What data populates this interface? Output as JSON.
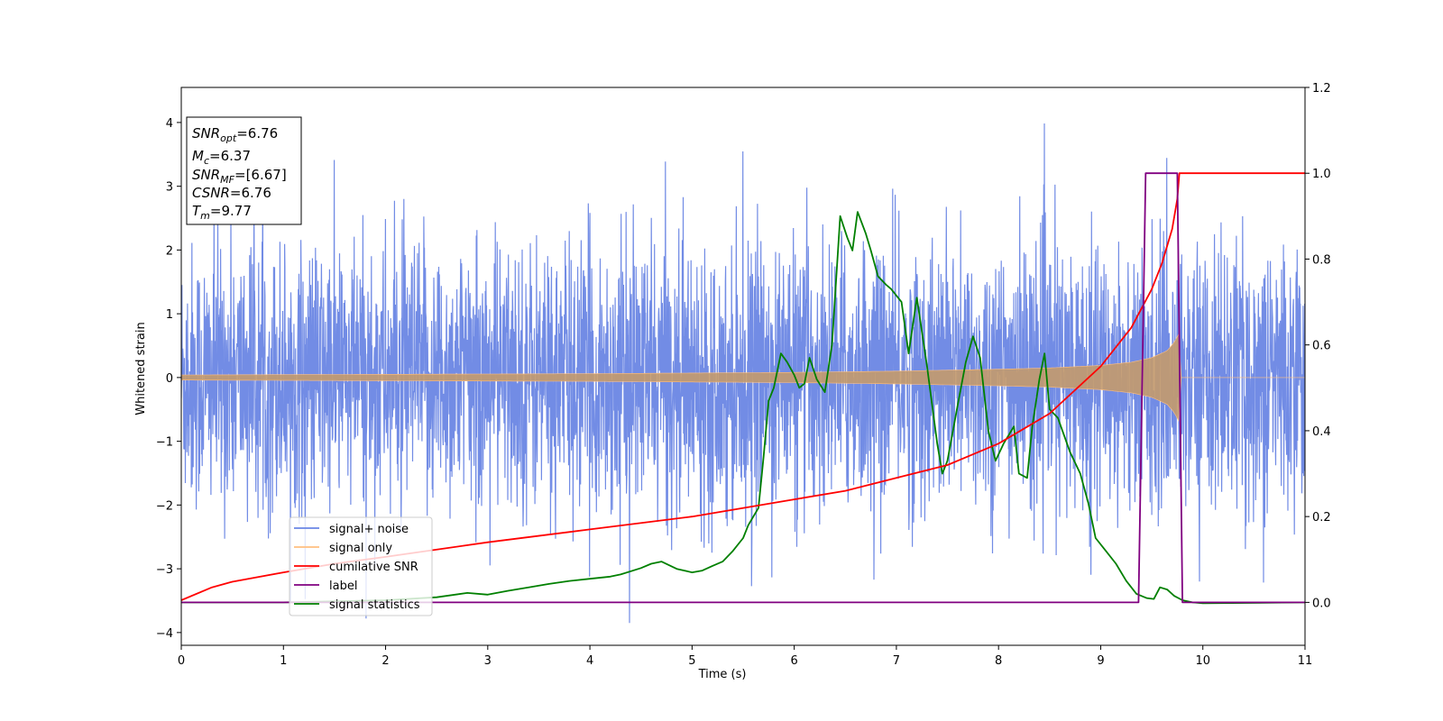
{
  "chart_data": {
    "type": "line",
    "title": "",
    "xlabel": "Time (s)",
    "ylabel": "Whitened strain",
    "xlim": [
      0,
      11
    ],
    "ylim": [
      -4.2,
      4.55
    ],
    "y2lim": [
      -0.1,
      1.2
    ],
    "grid": false,
    "legend_position": "bottom-left",
    "x_ticks": [
      0,
      1,
      2,
      3,
      4,
      5,
      6,
      7,
      8,
      9,
      10,
      11
    ],
    "x_tick_labels": [
      "0",
      "1",
      "2",
      "3",
      "4",
      "5",
      "6",
      "7",
      "8",
      "9",
      "10",
      "11"
    ],
    "y_ticks": [
      -4,
      -3,
      -2,
      -1,
      0,
      1,
      2,
      3,
      4
    ],
    "y_tick_labels": [
      "−4",
      "−3",
      "−2",
      "−1",
      "0",
      "1",
      "2",
      "3",
      "4"
    ],
    "y2_ticks": [
      0.0,
      0.2,
      0.4,
      0.6,
      0.8,
      1.0,
      1.2
    ],
    "y2_tick_labels": [
      "0.0",
      "0.2",
      "0.4",
      "0.6",
      "0.8",
      "1.0",
      "1.2"
    ],
    "series": [
      {
        "name": "signal+ noise",
        "color": "#6a86e4",
        "axis": "left",
        "rendering": "dense noise band, approximately ±2.5 with spikes reaching about ±4.1",
        "amplitude": 2.5,
        "peak": 4.15
      },
      {
        "name": "signal only",
        "color": "#ffbf80",
        "axis": "left",
        "rendering": "chirp envelope growing toward merger then zero",
        "envelope": {
          "x": [
            0,
            2,
            4,
            6,
            7,
            8,
            8.5,
            9,
            9.3,
            9.5,
            9.65,
            9.72,
            9.77,
            9.78,
            11
          ],
          "y": [
            0.04,
            0.05,
            0.06,
            0.08,
            0.1,
            0.13,
            0.15,
            0.19,
            0.24,
            0.31,
            0.42,
            0.55,
            0.7,
            0.0,
            0.0
          ]
        }
      },
      {
        "name": "cumilative SNR",
        "color": "#ff0000",
        "axis": "right",
        "x": [
          0,
          0.3,
          0.5,
          1.0,
          1.5,
          2,
          3,
          4,
          5,
          6,
          6.5,
          7,
          7.5,
          8,
          8.5,
          9,
          9.3,
          9.5,
          9.6,
          9.7,
          9.75,
          9.77,
          11
        ],
        "y": [
          0.005,
          0.035,
          0.048,
          0.07,
          0.09,
          0.106,
          0.14,
          0.17,
          0.2,
          0.24,
          0.26,
          0.29,
          0.32,
          0.37,
          0.44,
          0.55,
          0.64,
          0.73,
          0.79,
          0.87,
          0.94,
          1.0,
          1.0
        ]
      },
      {
        "name": "label",
        "color": "#800080",
        "axis": "right",
        "x": [
          0,
          9.37,
          9.44,
          9.75,
          9.8,
          11
        ],
        "y": [
          0,
          0,
          1,
          1,
          0,
          0
        ]
      },
      {
        "name": "signal statistics",
        "color": "#008000",
        "axis": "right",
        "x": [
          0,
          1,
          2,
          2.5,
          2.8,
          3,
          3.2,
          3.4,
          3.6,
          3.8,
          4.0,
          4.2,
          4.3,
          4.5,
          4.6,
          4.7,
          4.85,
          5.0,
          5.1,
          5.2,
          5.3,
          5.4,
          5.5,
          5.55,
          5.6,
          5.65,
          5.7,
          5.75,
          5.8,
          5.87,
          5.93,
          6.0,
          6.05,
          6.1,
          6.15,
          6.22,
          6.3,
          6.37,
          6.45,
          6.52,
          6.57,
          6.62,
          6.7,
          6.75,
          6.82,
          6.9,
          6.95,
          7.05,
          7.12,
          7.2,
          7.3,
          7.4,
          7.45,
          7.5,
          7.6,
          7.68,
          7.75,
          7.82,
          7.9,
          7.97,
          8.05,
          8.15,
          8.2,
          8.28,
          8.33,
          8.4,
          8.45,
          8.5,
          8.58,
          8.7,
          8.8,
          8.88,
          8.95,
          9.05,
          9.15,
          9.25,
          9.35,
          9.45,
          9.52,
          9.58,
          9.65,
          9.72,
          9.8,
          9.9,
          10.0,
          11.0
        ],
        "y": [
          0.0,
          0.0,
          0.005,
          0.012,
          0.022,
          0.018,
          0.027,
          0.035,
          0.043,
          0.05,
          0.055,
          0.06,
          0.065,
          0.08,
          0.09,
          0.095,
          0.078,
          0.07,
          0.074,
          0.085,
          0.095,
          0.12,
          0.15,
          0.18,
          0.2,
          0.22,
          0.34,
          0.47,
          0.5,
          0.58,
          0.56,
          0.53,
          0.5,
          0.51,
          0.57,
          0.52,
          0.49,
          0.6,
          0.9,
          0.85,
          0.82,
          0.91,
          0.86,
          0.82,
          0.76,
          0.74,
          0.73,
          0.7,
          0.58,
          0.71,
          0.55,
          0.37,
          0.3,
          0.33,
          0.46,
          0.56,
          0.62,
          0.57,
          0.4,
          0.33,
          0.37,
          0.41,
          0.3,
          0.29,
          0.41,
          0.52,
          0.58,
          0.45,
          0.43,
          0.35,
          0.3,
          0.23,
          0.15,
          0.12,
          0.09,
          0.05,
          0.02,
          0.01,
          0.008,
          0.035,
          0.03,
          0.015,
          0.005,
          0.0,
          -0.002,
          0.0
        ]
      }
    ],
    "annotation": {
      "lines": [
        {
          "base": "SNR",
          "sub": "opt",
          "value": "=6.76"
        },
        {
          "base": "M",
          "sub": "c",
          "value": "=6.37"
        },
        {
          "base": "SNR",
          "sub": "MF",
          "value": "=[6.67]"
        },
        {
          "base": "CSNR",
          "sub": "",
          "value": "=6.76"
        },
        {
          "base": "T",
          "sub": "m",
          "value": "=9.77"
        }
      ]
    }
  }
}
